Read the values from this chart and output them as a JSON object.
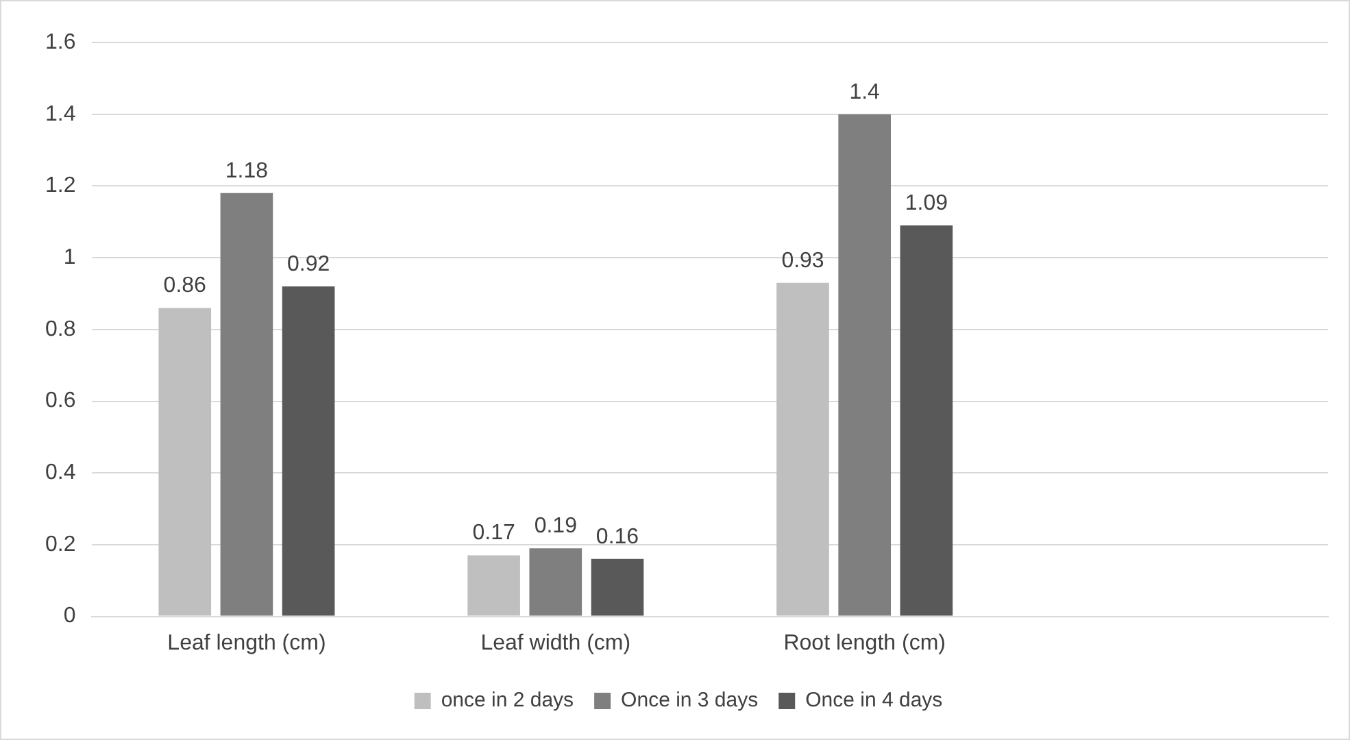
{
  "chart_data": {
    "type": "bar",
    "categories": [
      "Leaf length (cm)",
      "Leaf width (cm)",
      "Root length (cm)",
      null
    ],
    "series": [
      {
        "name": "once in 2 days",
        "color": "#bfbfbf",
        "values": [
          0.86,
          0.17,
          0.93,
          null
        ]
      },
      {
        "name": "Once in 3 days",
        "color": "#7f7f7f",
        "values": [
          1.18,
          0.19,
          1.4,
          null
        ]
      },
      {
        "name": "Once in 4 days",
        "color": "#595959",
        "values": [
          0.92,
          0.16,
          1.09,
          null
        ]
      }
    ],
    "ylim": [
      0,
      1.6
    ],
    "yticks": [
      0,
      0.2,
      0.4,
      0.6,
      0.8,
      1,
      1.2,
      1.4,
      1.6
    ],
    "grid": "y",
    "legend": "bottom",
    "data_labels": true
  }
}
